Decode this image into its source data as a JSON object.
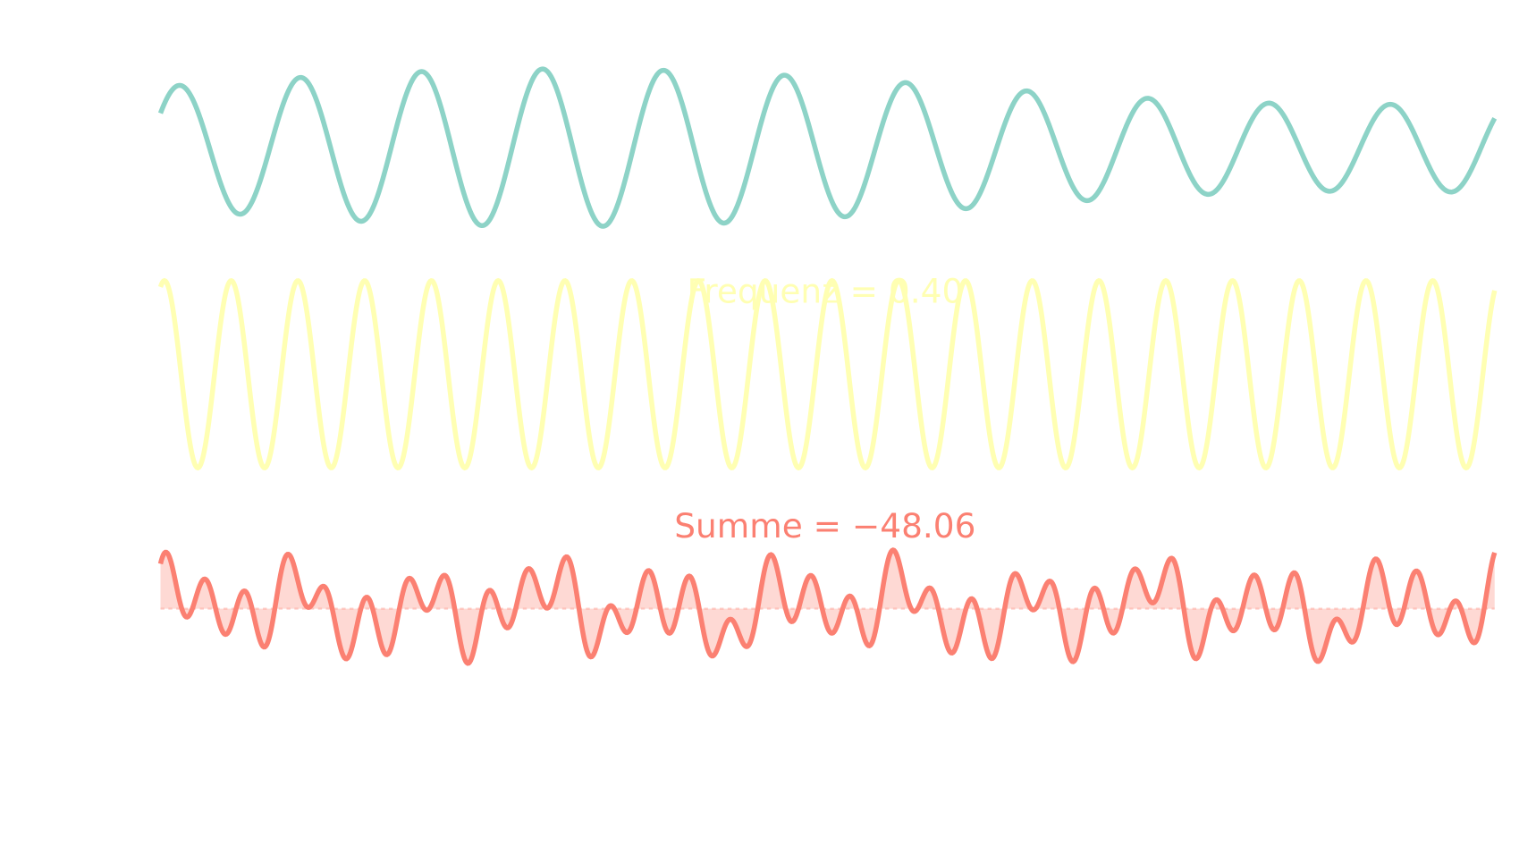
{
  "labels": {
    "frequency": "Frequenz = 0.40",
    "sum": "Summe = −48.06"
  }
}
